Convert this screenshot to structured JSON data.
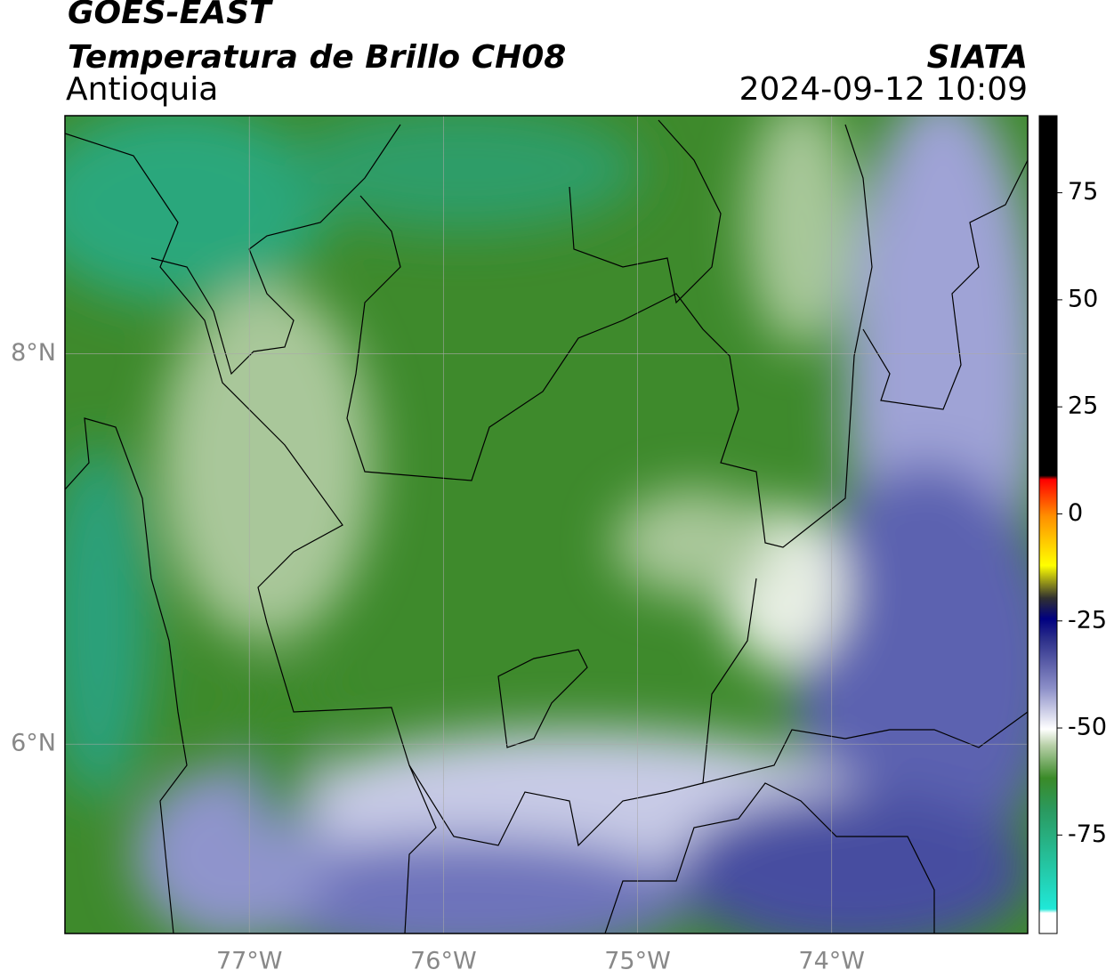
{
  "header": {
    "satellite": "GOES-EAST",
    "product": "Temperatura de Brillo CH08",
    "source": "SIATA",
    "region": "Antioquia",
    "datetime": "2024-09-12 10:09"
  },
  "map": {
    "lon_lim": [
      -77.95,
      -72.99
    ],
    "lat_lim": [
      5.03,
      9.22
    ],
    "lon_ticks": [
      {
        "value": -77,
        "label": "77°W"
      },
      {
        "value": -76,
        "label": "76°W"
      },
      {
        "value": -75,
        "label": "75°W"
      },
      {
        "value": -74,
        "label": "74°W"
      }
    ],
    "lat_ticks": [
      {
        "value": 8,
        "label": "8°N"
      },
      {
        "value": 6,
        "label": "6°N"
      }
    ],
    "grid": true
  },
  "colorbar": {
    "lim": [
      -98,
      93
    ],
    "ticks": [
      75,
      50,
      25,
      0,
      -25,
      -50,
      -75
    ]
  }
}
